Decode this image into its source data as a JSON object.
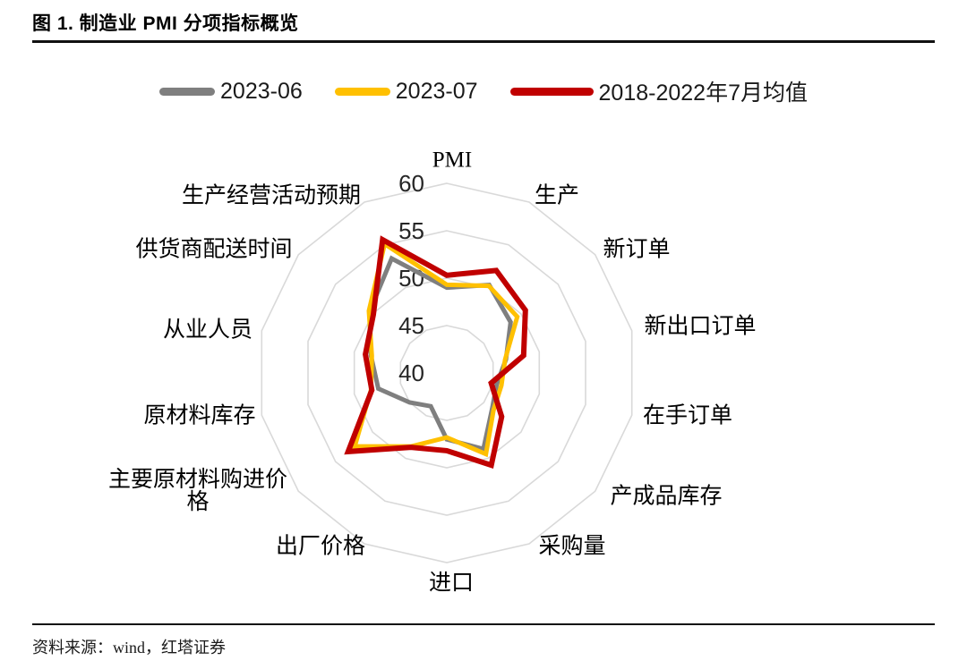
{
  "page": {
    "title": "图 1. 制造业 PMI 分项指标概览",
    "source_note": "资料来源：wind，红塔证券"
  },
  "chart_data": {
    "type": "radar",
    "title": "制造业 PMI 分项指标概览",
    "categories": [
      "PMI",
      "生产",
      "新订单",
      "新出口订单",
      "在手订单",
      "产成品库存",
      "采购量",
      "进口",
      "出厂价格",
      "主要原材料购进价格",
      "原材料库存",
      "从业人员",
      "供货商配送时间",
      "生产经营活动预期"
    ],
    "series": [
      {
        "name": "2023-06",
        "color": "#7F7F7F",
        "values": [
          49.0,
          50.3,
          48.6,
          46.4,
          45.4,
          46.1,
          48.9,
          47.0,
          43.9,
          45.0,
          47.4,
          48.2,
          50.4,
          53.4
        ]
      },
      {
        "name": "2023-07",
        "color": "#FFC000",
        "values": [
          49.3,
          50.2,
          49.5,
          46.3,
          45.9,
          46.3,
          49.5,
          46.8,
          48.6,
          52.4,
          48.2,
          48.1,
          50.5,
          55.1
        ]
      },
      {
        "name": "2018-2022年7月均值",
        "color": "#C00000",
        "values": [
          50.3,
          52.0,
          50.6,
          48.3,
          44.8,
          47.4,
          50.8,
          48.2,
          48.7,
          53.3,
          48.1,
          48.8,
          49.9,
          55.6
        ]
      }
    ],
    "axis": {
      "min": 40,
      "max": 60,
      "ticks": [
        40,
        45,
        50,
        55,
        60
      ]
    },
    "grid": true,
    "grid_color": "#D9D9D9",
    "legend_position": "top"
  }
}
